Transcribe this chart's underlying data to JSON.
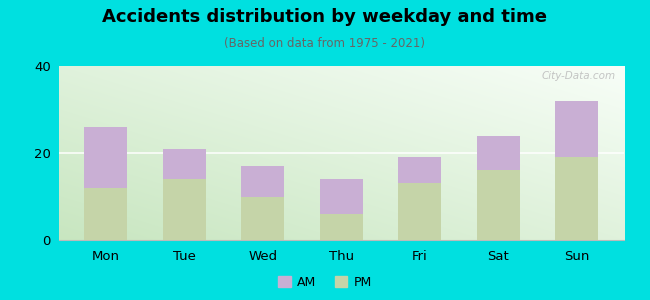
{
  "categories": [
    "Mon",
    "Tue",
    "Wed",
    "Thu",
    "Fri",
    "Sat",
    "Sun"
  ],
  "pm_values": [
    12,
    14,
    10,
    6,
    13,
    16,
    19
  ],
  "am_values": [
    14,
    7,
    7,
    8,
    6,
    8,
    13
  ],
  "am_color": "#c9afd4",
  "pm_color": "#c5d4a8",
  "title": "Accidents distribution by weekday and time",
  "subtitle": "(Based on data from 1975 - 2021)",
  "ylim": [
    0,
    40
  ],
  "yticks": [
    0,
    20,
    40
  ],
  "background_color": "#00e0e0",
  "watermark": "City-Data.com",
  "bar_width": 0.55,
  "legend_labels": [
    "AM",
    "PM"
  ],
  "bg_color_left": "#c8e8c0",
  "bg_color_right": "#f0faf0",
  "bg_color_top": "#f8fefc"
}
